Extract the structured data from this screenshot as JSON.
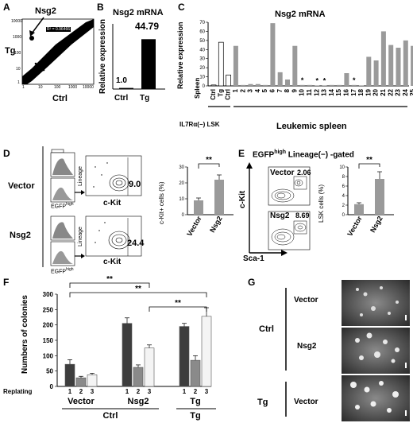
{
  "panels": {
    "A": {
      "letter": "A",
      "arrow_label": "Nsg2",
      "xlabel": "Ctrl",
      "ylabel": "Tg",
      "fit_text": "R² = 0.96466",
      "xticks": [
        "1",
        "10",
        "100",
        "1000",
        "10000"
      ],
      "yticks": [
        "10000",
        "1000",
        "100",
        "10",
        "1"
      ]
    },
    "B": {
      "letter": "B",
      "title": "Nsg2 mRNA",
      "ylabel": "Relative expression",
      "chart_data": {
        "type": "bar",
        "categories": [
          "Ctrl",
          "Tg"
        ],
        "values": [
          1.0,
          44.79
        ],
        "value_labels": [
          "1.0",
          "44.79"
        ],
        "ylabel": "Relative expression"
      }
    },
    "C": {
      "letter": "C",
      "title": "Nsg2 mRNA",
      "ylabel": "Relative expression",
      "yticks": [
        "0",
        "10",
        "20",
        "30",
        "40",
        "50",
        "60",
        "70"
      ],
      "group1_label": "IL7Rα(−) LSK",
      "group2_label": "Spleen",
      "group3_label": "Leukemic spleen",
      "star": "*",
      "chart_data": {
        "type": "bar",
        "categories": [
          "Ctrl",
          "Tg",
          "Ctrl",
          "1",
          "2",
          "3",
          "4",
          "5",
          "6",
          "7",
          "8",
          "9",
          "10",
          "11",
          "12",
          "13",
          "14",
          "15",
          "16",
          "17",
          "18",
          "19",
          "20",
          "21",
          "22",
          "23",
          "24",
          "25"
        ],
        "values": [
          1,
          48,
          12,
          44,
          1,
          2,
          2,
          1,
          69,
          15,
          7,
          44,
          1,
          1,
          0.5,
          0.5,
          1,
          1,
          14,
          1,
          0.5,
          32,
          28,
          60,
          45,
          42,
          50,
          44
        ],
        "starred": [
          "10",
          "12",
          "13",
          "17"
        ],
        "ylim": [
          0,
          70
        ]
      }
    },
    "D": {
      "letter": "D",
      "row1_label": "Vector",
      "row2_label": "Nsg2",
      "gate1_value": "9.0",
      "gate2_value": "24.4",
      "egfp_label": "EGFP",
      "egfp_sup": "high",
      "lineage_label": "Lineage",
      "ckit_label": "c-Kit",
      "ylabel": "c-Kit+ cells (%)",
      "sig": "**",
      "yticks": [
        "0",
        "10",
        "20",
        "30"
      ],
      "chart_data": {
        "type": "bar",
        "categories": [
          "Vector",
          "Nsg2"
        ],
        "values": [
          9,
          22
        ],
        "errors": [
          1.5,
          3
        ],
        "ylim": [
          0,
          30
        ],
        "ylabel": "c-Kit+ cells (%)"
      }
    },
    "E": {
      "letter": "E",
      "title": "EGFP",
      "title_sup": "high",
      "title_rest": " Lineage(−) -gated",
      "xlabel": "Sca-1",
      "ylabel": "c-Kit",
      "plot1_label": "Vector",
      "plot1_value": "2.06",
      "plot2_label": "Nsg2",
      "plot2_value": "8.69",
      "sig": "**",
      "bar_ylabel": "LSK cells (%)",
      "yticks": [
        "0",
        "2",
        "4",
        "6",
        "8",
        "10"
      ],
      "chart_data": {
        "type": "bar",
        "categories": [
          "Vector",
          "Nsg2"
        ],
        "values": [
          2.2,
          7.5
        ],
        "errors": [
          0.3,
          1.5
        ],
        "ylim": [
          0,
          10
        ],
        "ylabel": "LSK cells (%)"
      }
    },
    "F": {
      "letter": "F",
      "ylabel": "Numbers of colonies",
      "yticks": [
        "0",
        "50",
        "100",
        "150",
        "200",
        "250",
        "300"
      ],
      "replating_label": "Replating",
      "rounds": [
        "1",
        "2",
        "3"
      ],
      "groups": [
        "Vector",
        "Nsg2",
        "Vector",
        "Tg"
      ],
      "group_ctrl": "Ctrl",
      "group_tg": "Tg",
      "sig": "**",
      "chart_data": {
        "type": "bar",
        "ylim": [
          0,
          300
        ],
        "ylabel": "Numbers of colonies",
        "categories": [
          "Vector (Ctrl)",
          "Nsg2 (Ctrl)",
          "Vector (Tg)"
        ],
        "series": [
          {
            "name": "1",
            "values": [
              72,
              205,
              195
            ],
            "errors": [
              15,
              18,
              10
            ]
          },
          {
            "name": "2",
            "values": [
              28,
              62,
              85
            ],
            "errors": [
              5,
              8,
              15
            ]
          },
          {
            "name": "3",
            "values": [
              38,
              125,
              228
            ],
            "errors": [
              5,
              10,
              28
            ]
          }
        ]
      }
    },
    "G": {
      "letter": "G",
      "row_ctrl": "Ctrl",
      "row_tg": "Tg",
      "img1": "Vector",
      "img2": "Nsg2",
      "img3": "Vector"
    }
  },
  "colors": {
    "dark": "#3d3d3d",
    "mid": "#8a8a8a",
    "light": "#f2f2f2",
    "gray_bar": "#9a9a9a"
  }
}
